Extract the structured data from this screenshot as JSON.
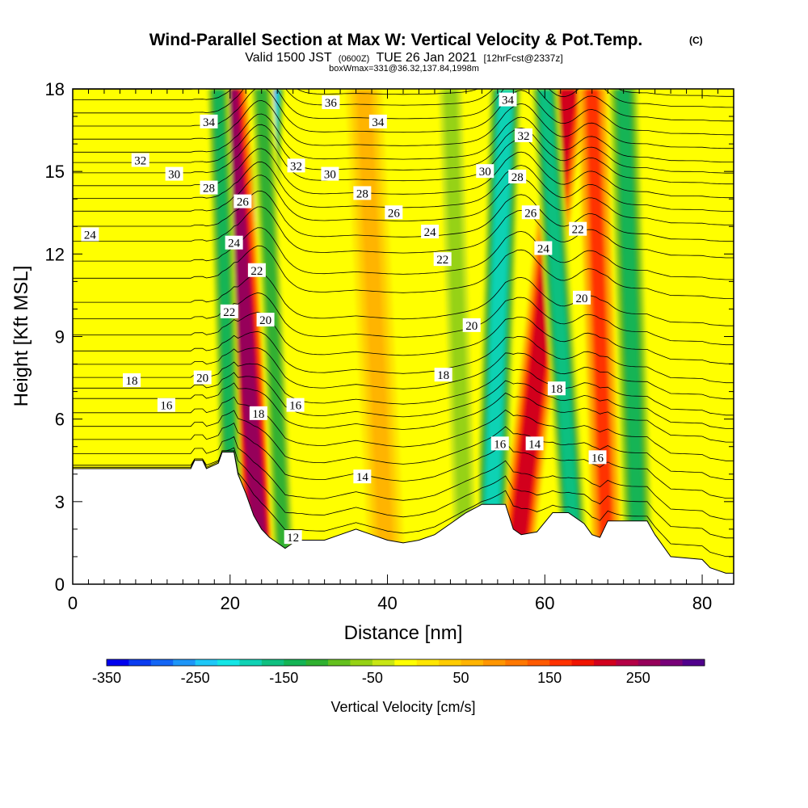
{
  "chart_data": {
    "type": "heatmap",
    "title": "Wind-Parallel Section at Max W: Vertical Velocity & Pot.Temp.",
    "title_mark": "(C)",
    "subtitle": {
      "part1": "Valid 1500 JST",
      "part2": "(0600Z)",
      "part3": "TUE 26 Jan 2021",
      "part4": "[12hrFcst@2337z]"
    },
    "info_line": "boxWmax=331@36.32,137.84,1998m",
    "xlabel": "Distance [nm]",
    "ylabel": "Height [Kft MSL]",
    "xlim": [
      0,
      84
    ],
    "ylim": [
      0,
      18
    ],
    "x_ticks": [
      0,
      20,
      40,
      60,
      80
    ],
    "y_ticks": [
      0,
      3,
      6,
      9,
      12,
      15,
      18
    ],
    "colorbar": {
      "label": "Vertical Velocity [cm/s]",
      "range": [
        -350,
        325
      ],
      "tick_values": [
        -350,
        -250,
        -150,
        -50,
        50,
        150,
        250
      ],
      "colors": [
        "#0000ee",
        "#0a3cf0",
        "#1466f5",
        "#1e96f8",
        "#1ec8f8",
        "#14e6e6",
        "#10d2b4",
        "#10c080",
        "#14b454",
        "#30b030",
        "#64c01e",
        "#96d214",
        "#c8e614",
        "#ffff00",
        "#ffe600",
        "#ffcc00",
        "#ffb400",
        "#ff9600",
        "#ff7800",
        "#ff5a00",
        "#ff3200",
        "#f01400",
        "#d2001e",
        "#b40046",
        "#96005a",
        "#780078",
        "#50008c"
      ]
    },
    "velocity_features": [
      {
        "x_top": 25,
        "x_bottom": 22,
        "w": -300,
        "half_width": 1.2
      },
      {
        "x_top": 20,
        "x_bottom": 24,
        "w": 260,
        "half_width": 1.4
      },
      {
        "x_top": 18.5,
        "x_bottom": 20.5,
        "w": -140,
        "half_width": 0.9
      },
      {
        "x_top": 24,
        "x_bottom": 27,
        "w": -120,
        "half_width": 1.0
      },
      {
        "x_top": 55,
        "x_bottom": 53,
        "w": -200,
        "half_width": 1.3
      },
      {
        "x_top": 63,
        "x_bottom": 56,
        "w": 220,
        "half_width": 1.4
      },
      {
        "x_top": 60,
        "x_bottom": 64,
        "w": -170,
        "half_width": 1.1
      },
      {
        "x_top": 66,
        "x_bottom": 68,
        "w": 150,
        "half_width": 1.2
      },
      {
        "x_top": 70,
        "x_bottom": 72,
        "w": -150,
        "half_width": 1.2
      },
      {
        "x_top": 37,
        "x_bottom": 40,
        "w": 60,
        "half_width": 1.5
      },
      {
        "x_top": 48,
        "x_bottom": 50,
        "w": -60,
        "half_width": 1.3
      }
    ],
    "terrain": [
      [
        0,
        4.2
      ],
      [
        15,
        4.2
      ],
      [
        15.5,
        4.5
      ],
      [
        16.5,
        4.5
      ],
      [
        17,
        4.2
      ],
      [
        18.5,
        4.4
      ],
      [
        19,
        4.8
      ],
      [
        20.5,
        4.8
      ],
      [
        21,
        4.0
      ],
      [
        22,
        3.3
      ],
      [
        23,
        2.5
      ],
      [
        24,
        2.0
      ],
      [
        25,
        1.7
      ],
      [
        26,
        1.5
      ],
      [
        27,
        1.3
      ],
      [
        28,
        1.5
      ],
      [
        29,
        1.6
      ],
      [
        32,
        1.6
      ],
      [
        34,
        1.8
      ],
      [
        36,
        2.0
      ],
      [
        38,
        1.8
      ],
      [
        40,
        1.6
      ],
      [
        42,
        1.5
      ],
      [
        44,
        1.6
      ],
      [
        46,
        1.8
      ],
      [
        48,
        2.2
      ],
      [
        50,
        2.6
      ],
      [
        52,
        2.9
      ],
      [
        55,
        2.9
      ],
      [
        56,
        2.0
      ],
      [
        57,
        1.8
      ],
      [
        59,
        1.9
      ],
      [
        61,
        2.6
      ],
      [
        63,
        2.6
      ],
      [
        65,
        2.2
      ],
      [
        66,
        1.8
      ],
      [
        67,
        1.7
      ],
      [
        68,
        2.3
      ],
      [
        73,
        2.3
      ],
      [
        74,
        1.8
      ],
      [
        75,
        1.4
      ],
      [
        76,
        1.0
      ],
      [
        80,
        0.9
      ],
      [
        81,
        0.6
      ],
      [
        83,
        0.4
      ],
      [
        84,
        0.4
      ]
    ],
    "isentropes": [
      {
        "theta": "12",
        "base": 0.7
      },
      {
        "theta": "",
        "base": 1.4
      },
      {
        "theta": "",
        "base": 2.1
      },
      {
        "theta": "14",
        "base": 2.9
      },
      {
        "theta": "",
        "base": 3.6
      },
      {
        "theta": "",
        "base": 4.3
      },
      {
        "theta": "16",
        "base": 5.0
      },
      {
        "theta": "",
        "base": 5.5
      },
      {
        "theta": "",
        "base": 6.0
      },
      {
        "theta": "18",
        "base": 6.6
      },
      {
        "theta": "",
        "base": 7.2
      },
      {
        "theta": "",
        "base": 7.9
      },
      {
        "theta": "20",
        "base": 8.6
      },
      {
        "theta": "",
        "base": 9.3
      },
      {
        "theta": "22",
        "base": 10.3
      },
      {
        "theta": "",
        "base": 11.0
      },
      {
        "theta": "24",
        "base": 11.8
      },
      {
        "theta": "",
        "base": 12.4
      },
      {
        "theta": "26",
        "base": 13.0
      },
      {
        "theta": "",
        "base": 13.5
      },
      {
        "theta": "28",
        "base": 14.0
      },
      {
        "theta": "",
        "base": 14.5
      },
      {
        "theta": "30",
        "base": 14.9
      },
      {
        "theta": "",
        "base": 15.3
      },
      {
        "theta": "32",
        "base": 15.8
      },
      {
        "theta": "",
        "base": 16.3
      },
      {
        "theta": "34",
        "base": 16.8
      },
      {
        "theta": "",
        "base": 17.3
      },
      {
        "theta": "36",
        "base": 17.7
      }
    ],
    "contour_labels": [
      {
        "text": "34",
        "x": 17.3,
        "y": 16.8
      },
      {
        "text": "32",
        "x": 8.6,
        "y": 15.4
      },
      {
        "text": "30",
        "x": 12.9,
        "y": 14.9
      },
      {
        "text": "28",
        "x": 17.3,
        "y": 14.4
      },
      {
        "text": "26",
        "x": 21.6,
        "y": 13.9
      },
      {
        "text": "24",
        "x": 2.2,
        "y": 12.7
      },
      {
        "text": "24",
        "x": 20.5,
        "y": 12.4
      },
      {
        "text": "22",
        "x": 23.4,
        "y": 11.4
      },
      {
        "text": "22",
        "x": 19.9,
        "y": 9.9
      },
      {
        "text": "20",
        "x": 24.5,
        "y": 9.6
      },
      {
        "text": "20",
        "x": 16.5,
        "y": 7.5
      },
      {
        "text": "18",
        "x": 7.5,
        "y": 7.4
      },
      {
        "text": "16",
        "x": 11.9,
        "y": 6.5
      },
      {
        "text": "18",
        "x": 23.6,
        "y": 6.2
      },
      {
        "text": "16",
        "x": 28.3,
        "y": 6.5
      },
      {
        "text": "36",
        "x": 32.8,
        "y": 17.5
      },
      {
        "text": "34",
        "x": 38.8,
        "y": 16.8
      },
      {
        "text": "32",
        "x": 28.4,
        "y": 15.2
      },
      {
        "text": "30",
        "x": 32.7,
        "y": 14.9
      },
      {
        "text": "28",
        "x": 36.8,
        "y": 14.2
      },
      {
        "text": "26",
        "x": 40.8,
        "y": 13.5
      },
      {
        "text": "24",
        "x": 45.4,
        "y": 12.8
      },
      {
        "text": "22",
        "x": 47.0,
        "y": 11.8
      },
      {
        "text": "20",
        "x": 50.7,
        "y": 9.4
      },
      {
        "text": "18",
        "x": 47.1,
        "y": 7.6
      },
      {
        "text": "14",
        "x": 36.8,
        "y": 3.9
      },
      {
        "text": "12",
        "x": 28.0,
        "y": 1.7
      },
      {
        "text": "34",
        "x": 55.3,
        "y": 17.6
      },
      {
        "text": "32",
        "x": 57.3,
        "y": 16.3
      },
      {
        "text": "30",
        "x": 52.4,
        "y": 15.0
      },
      {
        "text": "28",
        "x": 56.5,
        "y": 14.8
      },
      {
        "text": "26",
        "x": 58.2,
        "y": 13.5
      },
      {
        "text": "24",
        "x": 59.8,
        "y": 12.2
      },
      {
        "text": "22",
        "x": 64.2,
        "y": 12.9
      },
      {
        "text": "20",
        "x": 64.7,
        "y": 10.4
      },
      {
        "text": "18",
        "x": 61.5,
        "y": 7.1
      },
      {
        "text": "16",
        "x": 54.3,
        "y": 5.1
      },
      {
        "text": "14",
        "x": 58.7,
        "y": 5.1
      },
      {
        "text": "16",
        "x": 66.7,
        "y": 4.6
      }
    ]
  }
}
